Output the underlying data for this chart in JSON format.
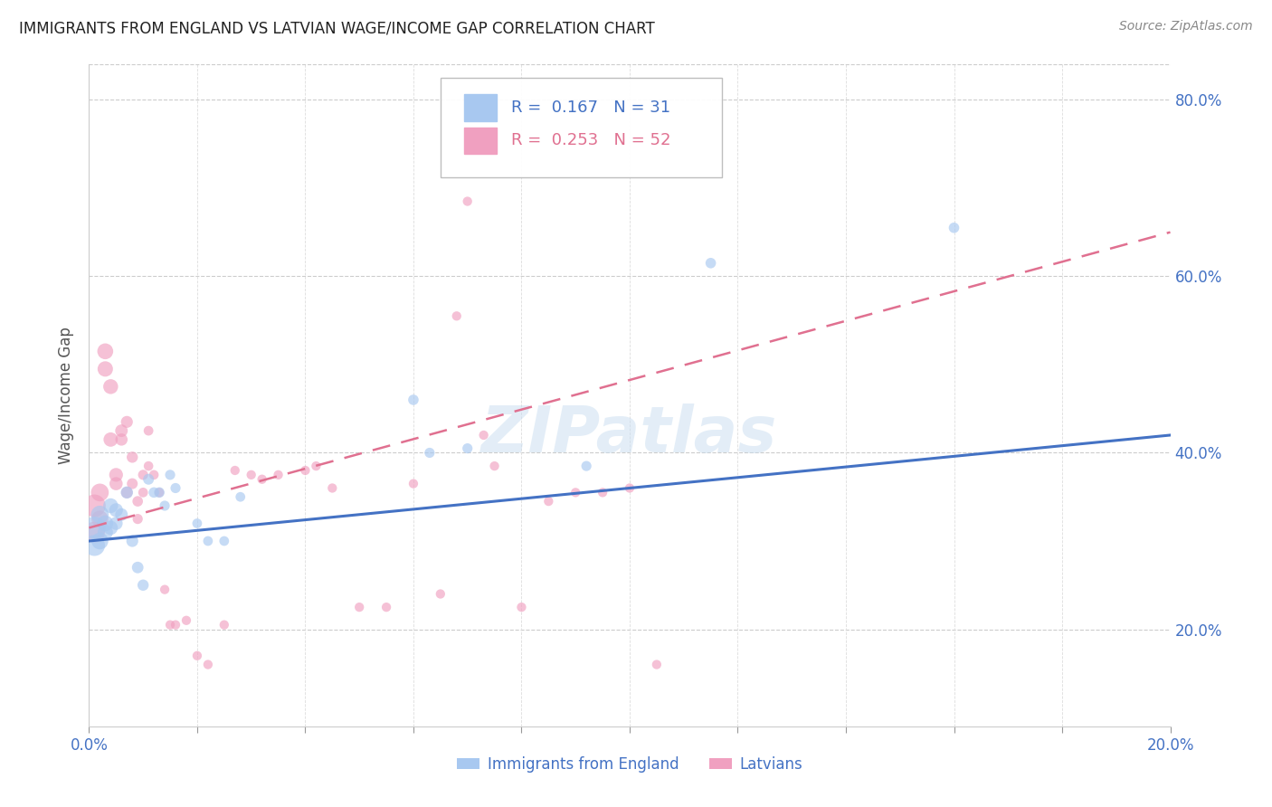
{
  "title": "IMMIGRANTS FROM ENGLAND VS LATVIAN WAGE/INCOME GAP CORRELATION CHART",
  "source": "Source: ZipAtlas.com",
  "ylabel": "Wage/Income Gap",
  "legend_label1": "Immigrants from England",
  "legend_label2": "Latvians",
  "R1": 0.167,
  "N1": 31,
  "R2": 0.253,
  "N2": 52,
  "color1": "#a8c8f0",
  "color2": "#f0a0c0",
  "trendline1_color": "#4472c4",
  "trendline2_color": "#e07090",
  "xlim": [
    0.0,
    0.2
  ],
  "ylim": [
    0.09,
    0.84
  ],
  "yticks": [
    0.2,
    0.4,
    0.6,
    0.8
  ],
  "trendline1_x0": 0.0,
  "trendline1_y0": 0.3,
  "trendline1_x1": 0.2,
  "trendline1_y1": 0.42,
  "trendline2_x0": 0.0,
  "trendline2_y0": 0.315,
  "trendline2_x1": 0.2,
  "trendline2_y1": 0.65,
  "scatter1_x": [
    0.001,
    0.001,
    0.002,
    0.002,
    0.003,
    0.003,
    0.004,
    0.004,
    0.005,
    0.005,
    0.006,
    0.007,
    0.008,
    0.009,
    0.01,
    0.011,
    0.012,
    0.013,
    0.014,
    0.015,
    0.016,
    0.02,
    0.022,
    0.025,
    0.028,
    0.06,
    0.063,
    0.07,
    0.092,
    0.115,
    0.16
  ],
  "scatter1_y": [
    0.315,
    0.295,
    0.33,
    0.3,
    0.32,
    0.31,
    0.34,
    0.315,
    0.335,
    0.32,
    0.33,
    0.355,
    0.3,
    0.27,
    0.25,
    0.37,
    0.355,
    0.355,
    0.34,
    0.375,
    0.36,
    0.32,
    0.3,
    0.3,
    0.35,
    0.46,
    0.4,
    0.405,
    0.385,
    0.615,
    0.655
  ],
  "scatter1_sizes": [
    320,
    280,
    200,
    180,
    160,
    150,
    140,
    130,
    120,
    110,
    100,
    95,
    90,
    85,
    80,
    75,
    70,
    70,
    65,
    65,
    65,
    60,
    60,
    60,
    60,
    70,
    65,
    65,
    65,
    70,
    70
  ],
  "scatter2_x": [
    0.001,
    0.001,
    0.002,
    0.002,
    0.003,
    0.003,
    0.004,
    0.004,
    0.005,
    0.005,
    0.006,
    0.006,
    0.007,
    0.007,
    0.008,
    0.008,
    0.009,
    0.009,
    0.01,
    0.01,
    0.011,
    0.011,
    0.012,
    0.013,
    0.014,
    0.015,
    0.016,
    0.018,
    0.02,
    0.022,
    0.025,
    0.027,
    0.03,
    0.032,
    0.035,
    0.04,
    0.042,
    0.045,
    0.05,
    0.055,
    0.06,
    0.065,
    0.068,
    0.07,
    0.073,
    0.075,
    0.08,
    0.085,
    0.09,
    0.095,
    0.1,
    0.105
  ],
  "scatter2_y": [
    0.34,
    0.31,
    0.355,
    0.325,
    0.515,
    0.495,
    0.475,
    0.415,
    0.375,
    0.365,
    0.425,
    0.415,
    0.435,
    0.355,
    0.395,
    0.365,
    0.345,
    0.325,
    0.375,
    0.355,
    0.425,
    0.385,
    0.375,
    0.355,
    0.245,
    0.205,
    0.205,
    0.21,
    0.17,
    0.16,
    0.205,
    0.38,
    0.375,
    0.37,
    0.375,
    0.38,
    0.385,
    0.36,
    0.225,
    0.225,
    0.365,
    0.24,
    0.555,
    0.685,
    0.42,
    0.385,
    0.225,
    0.345,
    0.355,
    0.355,
    0.36,
    0.16
  ],
  "scatter2_sizes": [
    320,
    280,
    200,
    180,
    160,
    150,
    140,
    130,
    120,
    110,
    100,
    95,
    90,
    85,
    80,
    75,
    70,
    65,
    65,
    60,
    60,
    58,
    58,
    55,
    55,
    55,
    55,
    55,
    55,
    55,
    55,
    55,
    55,
    55,
    55,
    55,
    55,
    55,
    55,
    55,
    55,
    55,
    55,
    55,
    55,
    55,
    55,
    55,
    55,
    55,
    55,
    55
  ]
}
